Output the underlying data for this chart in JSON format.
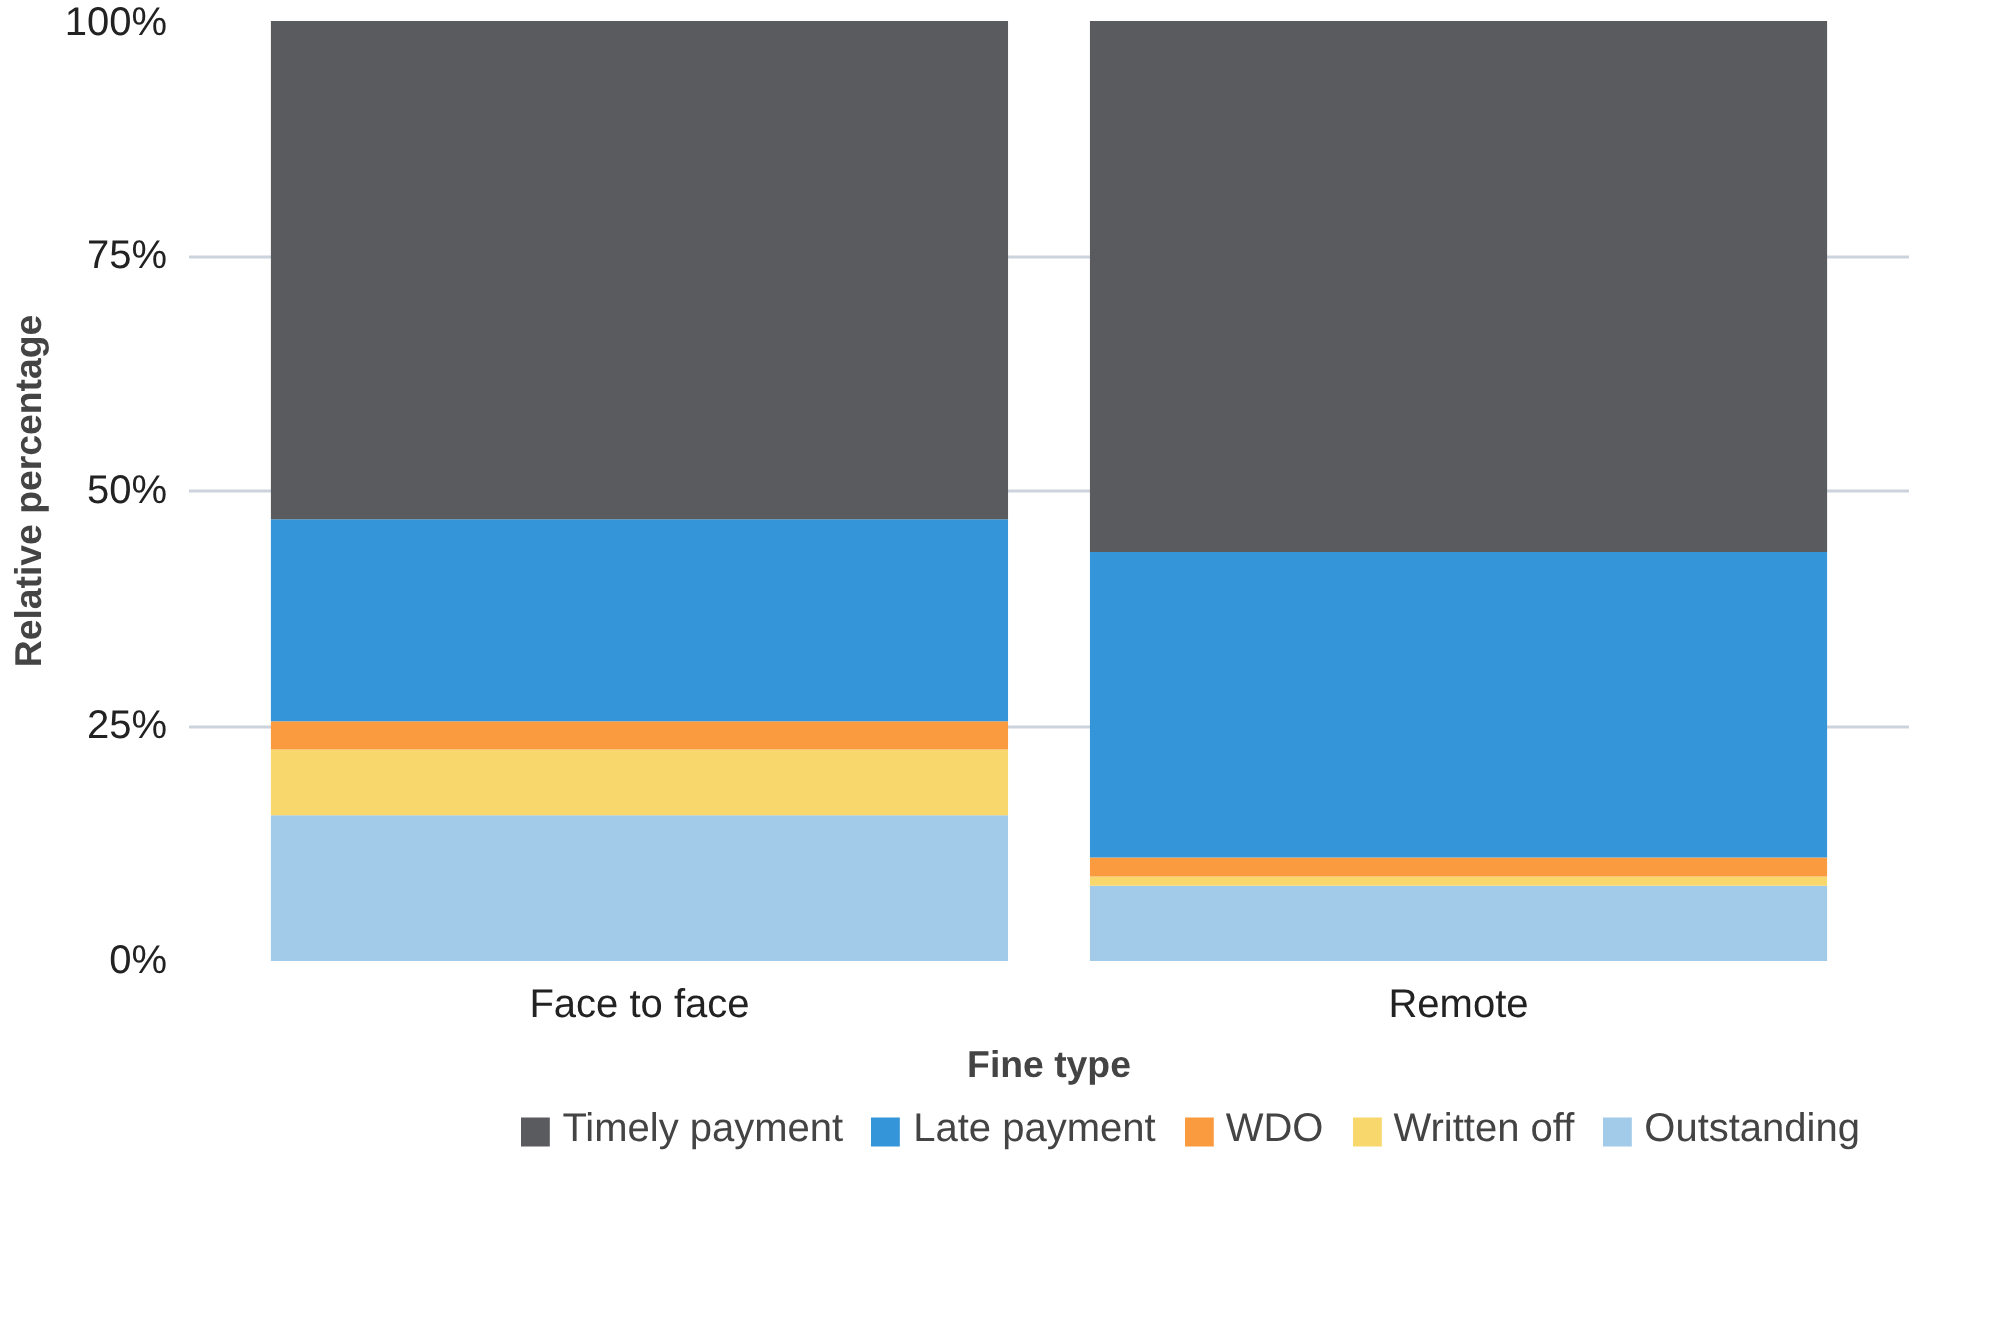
{
  "chart_data": {
    "type": "bar",
    "stacked": true,
    "xlabel": "Fine type",
    "ylabel": "Relative percentage",
    "categories": [
      "Face to face",
      "Remote"
    ],
    "series": [
      {
        "name": "Outstanding",
        "color": "#a1cbe8",
        "values": [
          15.5,
          8
        ]
      },
      {
        "name": "Written off",
        "color": "#f8d86c",
        "values": [
          7,
          1
        ]
      },
      {
        "name": "WDO",
        "color": "#fa9b40",
        "values": [
          3,
          2
        ]
      },
      {
        "name": "Late payment",
        "color": "#3595d9",
        "values": [
          21.5,
          32.5
        ]
      },
      {
        "name": "Timely payment",
        "color": "#5a5b5f",
        "values": [
          53,
          56.5
        ]
      }
    ],
    "ylim": [
      0,
      100
    ],
    "yticks": [
      {
        "value": 0,
        "label": "0%"
      },
      {
        "value": 25,
        "label": "25%"
      },
      {
        "value": 50,
        "label": "50%"
      },
      {
        "value": 75,
        "label": "75%"
      },
      {
        "value": 100,
        "label": "100%"
      }
    ],
    "grid": "y",
    "legend": "bottom"
  }
}
